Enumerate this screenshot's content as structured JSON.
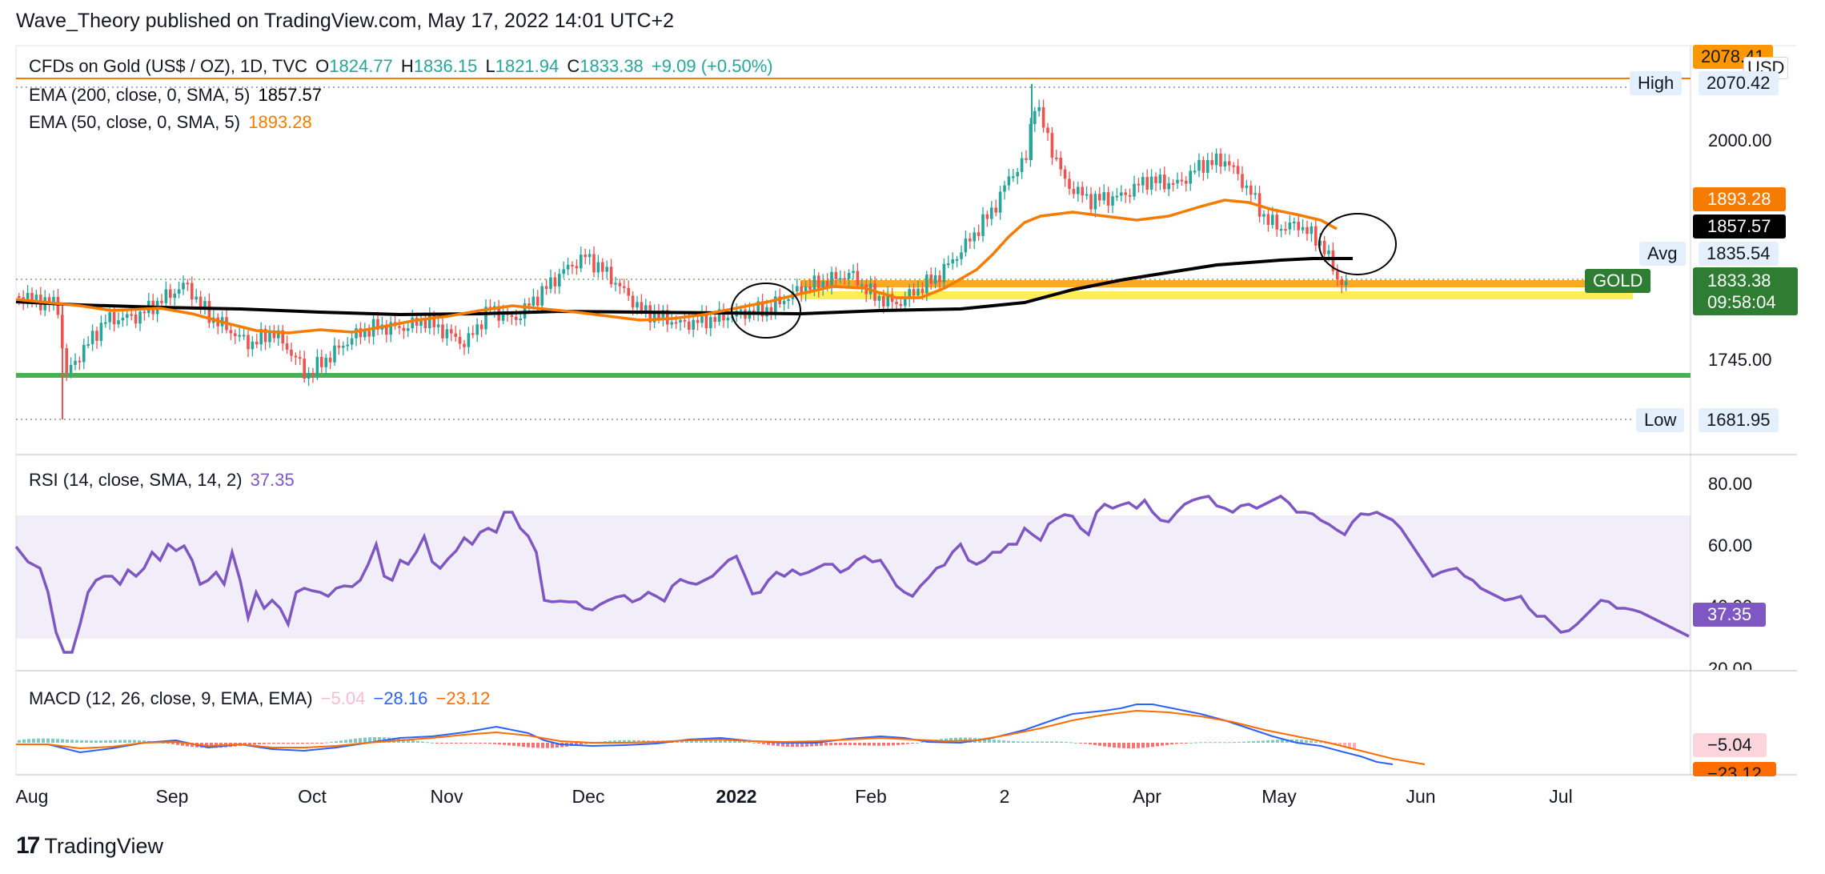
{
  "publisher_line": "Wave_Theory published on TradingView.com, May 17, 2022 14:01 UTC+2",
  "symbol": {
    "title": "CFDs on Gold (US$ / OZ), 1D, TVC",
    "o_label": "O",
    "o": "1824.77",
    "h_label": "H",
    "h": "1836.15",
    "l_label": "L",
    "l": "1821.94",
    "c_label": "C",
    "c": "1833.38",
    "change": "+9.09 (+0.50%)"
  },
  "indicators": {
    "ema200": {
      "label": "EMA (200, close, 0, SMA, 5)",
      "value": "1857.57",
      "color": "#000000"
    },
    "ema50": {
      "label": "EMA (50, close, 0, SMA, 5)",
      "value": "1893.28",
      "color": "#f57c00"
    },
    "rsi": {
      "label": "RSI (14, close, SMA, 14, 2)",
      "value": "37.35",
      "color": "#7e57c2"
    },
    "macd": {
      "label": "MACD (12, 26, close, 9, EMA, EMA)",
      "hist": "−5.04",
      "macd": "−28.16",
      "signal": "−23.12"
    }
  },
  "price_axis": {
    "currency": "USD",
    "top_box": "2078.41",
    "high_label": "High",
    "high_value": "2070.42",
    "tick_2000": "2000.00",
    "ema50_box": "1893.28",
    "ema200_box": "1857.57",
    "avg_label": "Avg",
    "avg_value": "1835.54",
    "gold_label": "GOLD",
    "gold_value": "1833.38",
    "countdown": "09:58:04",
    "tick_1745": "1745.00",
    "low_label": "Low",
    "low_value": "1681.95"
  },
  "rsi_axis": {
    "t80": "80.00",
    "t60": "60.00",
    "t40": "40.00",
    "t20": "20.00",
    "box": "37.35"
  },
  "macd_axis": {
    "box1": "−5.04",
    "box2": "−23.12"
  },
  "time_axis": [
    "Aug",
    "Sep",
    "Oct",
    "Nov",
    "Dec",
    "2022",
    "Feb",
    "2",
    "Apr",
    "May",
    "Jun",
    "Jul"
  ],
  "brand": "TradingView",
  "colors": {
    "up": "#26a69a",
    "down": "#ef5350",
    "green_line": "#4caf50",
    "yellow": "#ffeb3b",
    "orange": "#ff9800",
    "rsi": "#7e57c2",
    "macd": "#2962ff",
    "signal": "#ff6d00"
  },
  "chart_data": {
    "type": "line",
    "title": "CFDs on Gold (US$ / OZ), 1D, TVC",
    "x": [
      "Aug",
      "Sep",
      "Oct",
      "Nov",
      "Dec",
      "2022",
      "Feb",
      "2",
      "Apr",
      "May"
    ],
    "series": [
      {
        "name": "EMA (200, close, 0, SMA, 5)",
        "values": [
          1815,
          1810,
          1805,
          1806,
          1806,
          1808,
          1812,
          1828,
          1848,
          1857
        ]
      },
      {
        "name": "EMA (50, close, 0, SMA, 5)",
        "values": [
          1820,
          1805,
          1780,
          1800,
          1820,
          1805,
          1815,
          1880,
          1925,
          1893
        ]
      }
    ],
    "close_approx": [
      1815,
      1760,
      1755,
      1790,
      1860,
      1790,
      1800,
      1830,
      1960,
      1935,
      1975,
      1880,
      1833
    ],
    "horizontal_levels": {
      "green_support": 1740,
      "yellow_band": [
        1805,
        1825
      ]
    },
    "high": 2070.42,
    "low": 1681.95,
    "avg": 1835.54,
    "rsi_last": 37.35,
    "rsi_band": [
      30,
      70
    ],
    "macd_last": {
      "histogram": -5.04,
      "macd": -28.16,
      "signal": -23.12
    },
    "ylim": [
      1670,
      2090
    ]
  }
}
